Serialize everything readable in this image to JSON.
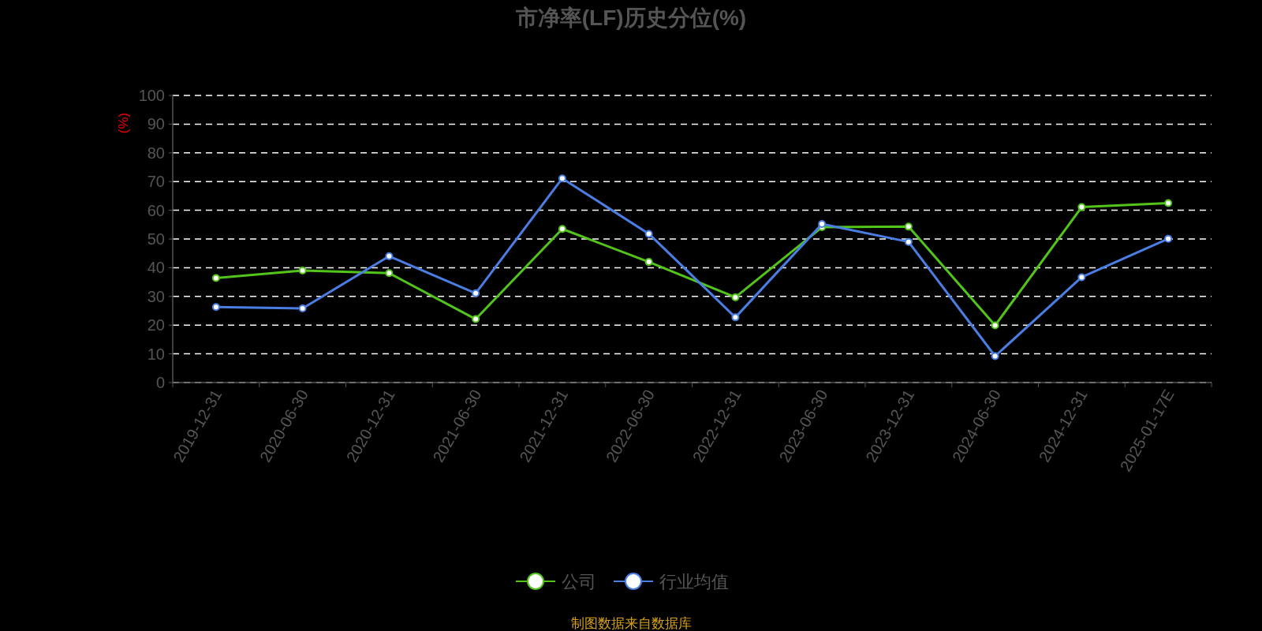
{
  "chart_data": {
    "type": "line",
    "title": "市净率(LF)历史分位(%)",
    "ylabel": "(%)",
    "categories": [
      "2019-12-31",
      "2020-06-30",
      "2020-12-31",
      "2021-06-30",
      "2021-12-31",
      "2022-06-30",
      "2022-12-31",
      "2023-06-30",
      "2023-12-31",
      "2024-06-30",
      "2024-12-31",
      "2025-01-17E"
    ],
    "series": [
      {
        "name": "公司",
        "color": "#52c41a",
        "values": [
          36.4,
          39.0,
          38.1,
          22.1,
          53.5,
          42.0,
          29.7,
          54.1,
          54.3,
          19.9,
          61.1,
          62.5
        ]
      },
      {
        "name": "行业均值",
        "color": "#4a7ee3",
        "values": [
          26.3,
          25.8,
          44.0,
          31.1,
          71.1,
          51.8,
          22.7,
          55.2,
          49.0,
          9.2,
          36.7,
          50.1
        ]
      }
    ],
    "ylim": [
      0,
      100
    ],
    "yticks": [
      0,
      10,
      20,
      30,
      40,
      50,
      60,
      70,
      80,
      90,
      100
    ],
    "grid": "y",
    "legend": "bottom",
    "marker": "circle",
    "annotations": [
      "制图数据来自数据库"
    ]
  }
}
